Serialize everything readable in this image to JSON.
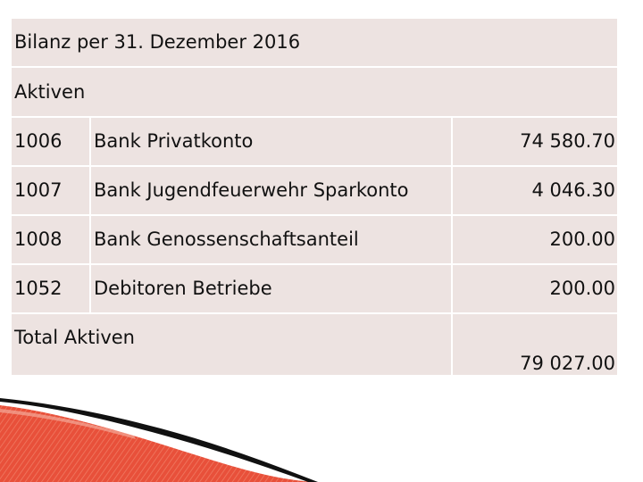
{
  "title": "Bilanz per 31. Dezember 2016",
  "section": "Aktiven",
  "rows": [
    {
      "account": "1006",
      "name": "Bank Privatkonto",
      "amount": "74 580.70"
    },
    {
      "account": "1007",
      "name": "Bank Jugendfeuerwehr Sparkonto",
      "amount": "4 046.30"
    },
    {
      "account": "1008",
      "name": "Bank Genossenschaftsanteil",
      "amount": "200.00"
    },
    {
      "account": "1052",
      "name": "Debitoren Betriebe",
      "amount": "200.00"
    }
  ],
  "total": {
    "label": "Total Aktiven",
    "amount": "79 027.00"
  },
  "colors": {
    "table_bg": "#ede3e1",
    "accent_red": "#e8503a",
    "accent_dark": "#111111"
  }
}
